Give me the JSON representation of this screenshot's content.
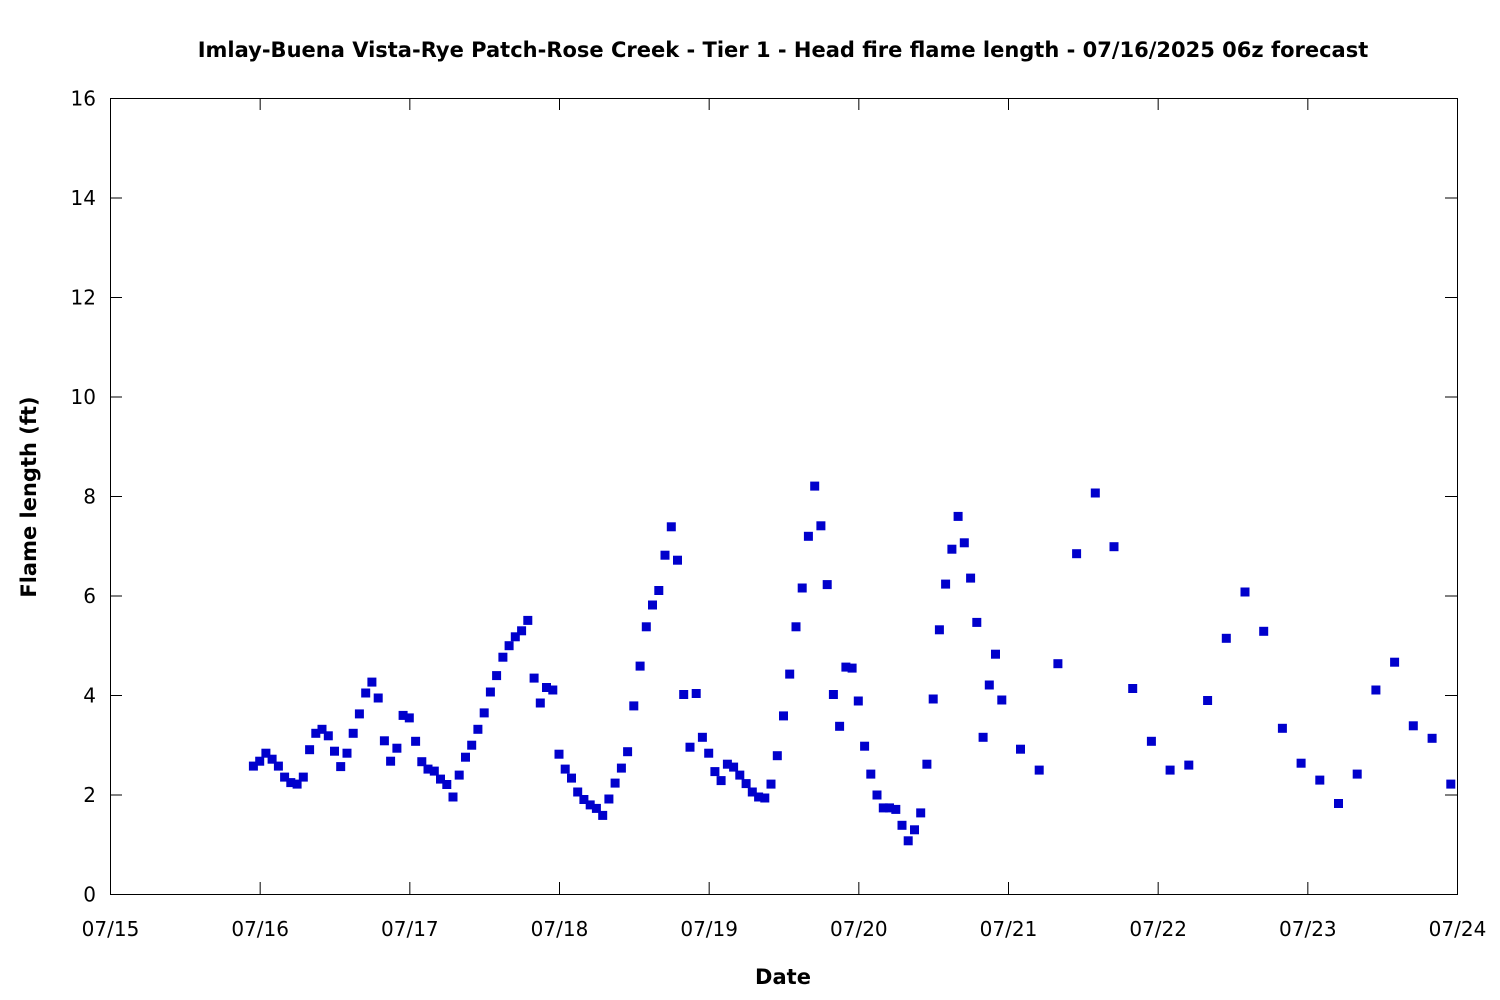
{
  "chart_data": {
    "type": "scatter",
    "title": "Imlay-Buena Vista-Rye Patch-Rose Creek - Tier 1 - Head fire flame length - 07/16/2025 06z forecast",
    "xlabel": "Date",
    "ylabel": "Flame length (ft)",
    "xlim": [
      "07/15 00:00",
      "07/24 00:00"
    ],
    "ylim": [
      0,
      16
    ],
    "x_ticks": [
      "07/15",
      "07/16",
      "07/17",
      "07/18",
      "07/19",
      "07/20",
      "07/21",
      "07/22",
      "07/23",
      "07/24"
    ],
    "y_ticks": [
      0,
      2,
      4,
      6,
      8,
      10,
      12,
      14,
      16
    ],
    "grid": false,
    "marker_color": "#0000cc",
    "series": [
      {
        "x": [
          "07/15 23:00",
          "07/16 00:00",
          "07/16 01:00",
          "07/16 02:00",
          "07/16 03:00",
          "07/16 04:00",
          "07/16 05:00",
          "07/16 06:00",
          "07/16 07:00",
          "07/16 08:00",
          "07/16 09:00",
          "07/16 10:00",
          "07/16 11:00",
          "07/16 12:00",
          "07/16 13:00",
          "07/16 14:00",
          "07/16 15:00",
          "07/16 16:00",
          "07/16 17:00",
          "07/16 18:00",
          "07/16 19:00",
          "07/16 20:00",
          "07/16 21:00",
          "07/16 22:00",
          "07/16 23:00",
          "07/17 00:00",
          "07/17 01:00",
          "07/17 02:00",
          "07/17 03:00",
          "07/17 04:00",
          "07/17 05:00",
          "07/17 06:00",
          "07/17 07:00",
          "07/17 08:00",
          "07/17 09:00",
          "07/17 10:00",
          "07/17 11:00",
          "07/17 12:00",
          "07/17 13:00",
          "07/17 14:00",
          "07/17 15:00",
          "07/17 16:00",
          "07/17 17:00",
          "07/17 18:00",
          "07/17 19:00",
          "07/17 20:00",
          "07/17 21:00",
          "07/17 22:00",
          "07/17 23:00",
          "07/18 00:00",
          "07/18 01:00",
          "07/18 02:00",
          "07/18 03:00",
          "07/18 04:00",
          "07/18 05:00",
          "07/18 06:00",
          "07/18 07:00",
          "07/18 08:00",
          "07/18 09:00",
          "07/18 10:00",
          "07/18 11:00",
          "07/18 12:00",
          "07/18 13:00",
          "07/18 14:00",
          "07/18 15:00",
          "07/18 16:00",
          "07/18 17:00",
          "07/18 18:00",
          "07/18 19:00",
          "07/18 20:00",
          "07/18 21:00",
          "07/18 22:00",
          "07/18 23:00",
          "07/19 00:00",
          "07/19 01:00",
          "07/19 02:00",
          "07/19 03:00",
          "07/19 04:00",
          "07/19 05:00",
          "07/19 06:00",
          "07/19 07:00",
          "07/19 08:00",
          "07/19 09:00",
          "07/19 10:00",
          "07/19 11:00",
          "07/19 12:00",
          "07/19 13:00",
          "07/19 14:00",
          "07/19 15:00",
          "07/19 16:00",
          "07/19 17:00",
          "07/19 18:00",
          "07/19 19:00",
          "07/19 20:00",
          "07/19 21:00",
          "07/19 22:00",
          "07/19 23:00",
          "07/20 00:00",
          "07/20 01:00",
          "07/20 02:00",
          "07/20 03:00",
          "07/20 04:00",
          "07/20 05:00",
          "07/20 06:00",
          "07/20 07:00",
          "07/20 08:00",
          "07/20 09:00",
          "07/20 10:00",
          "07/20 11:00",
          "07/20 12:00",
          "07/20 13:00",
          "07/20 14:00",
          "07/20 15:00",
          "07/20 16:00",
          "07/20 17:00",
          "07/20 18:00",
          "07/20 19:00",
          "07/20 20:00",
          "07/20 21:00",
          "07/20 22:00",
          "07/20 23:00",
          "07/21 02:00",
          "07/21 05:00",
          "07/21 08:00",
          "07/21 11:00",
          "07/21 14:00",
          "07/21 17:00",
          "07/21 20:00",
          "07/21 23:00",
          "07/22 02:00",
          "07/22 05:00",
          "07/22 08:00",
          "07/22 11:00",
          "07/22 14:00",
          "07/22 17:00",
          "07/22 20:00",
          "07/22 23:00",
          "07/23 02:00",
          "07/23 05:00",
          "07/23 08:00",
          "07/23 11:00",
          "07/23 14:00",
          "07/23 17:00",
          "07/23 20:00",
          "07/23 23:00"
        ],
        "y": [
          2.57,
          2.67,
          2.83,
          2.71,
          2.57,
          2.35,
          2.24,
          2.21,
          2.35,
          2.9,
          3.23,
          3.31,
          3.18,
          2.87,
          2.56,
          2.83,
          3.23,
          3.62,
          4.04,
          4.26,
          3.94,
          3.08,
          2.67,
          2.93,
          3.59,
          3.54,
          3.07,
          2.66,
          2.51,
          2.47,
          2.31,
          2.2,
          1.95,
          2.39,
          2.75,
          2.99,
          3.31,
          3.64,
          4.06,
          4.39,
          4.76,
          4.99,
          5.17,
          5.29,
          5.5,
          4.34,
          3.84,
          4.15,
          4.1,
          2.81,
          2.51,
          2.33,
          2.05,
          1.9,
          1.79,
          1.72,
          1.58,
          1.91,
          2.23,
          2.53,
          2.86,
          3.78,
          4.58,
          5.37,
          5.81,
          6.1,
          6.81,
          7.38,
          6.71,
          4.01,
          2.95,
          4.03,
          3.15,
          2.83,
          2.46,
          2.28,
          2.61,
          2.55,
          2.39,
          2.22,
          2.05,
          1.95,
          1.93,
          2.21,
          2.78,
          3.58,
          4.42,
          5.37,
          6.15,
          7.19,
          8.2,
          7.4,
          6.22,
          4.01,
          3.37,
          4.56,
          4.54,
          3.88,
          2.97,
          2.41,
          1.99,
          1.73,
          1.73,
          1.7,
          1.38,
          1.07,
          1.29,
          1.63,
          2.61,
          3.92,
          5.31,
          6.23,
          6.93,
          7.59,
          7.06,
          6.35,
          5.46,
          3.15,
          4.2,
          4.82,
          3.9,
          2.91,
          2.49,
          4.63,
          6.84,
          8.06,
          6.98,
          4.13,
          3.07,
          2.49,
          2.59,
          3.89,
          5.14,
          6.07,
          5.28,
          3.33,
          2.63,
          2.29,
          1.82,
          2.41,
          4.1,
          4.66,
          3.38,
          3.13,
          2.21
        ]
      }
    ]
  }
}
